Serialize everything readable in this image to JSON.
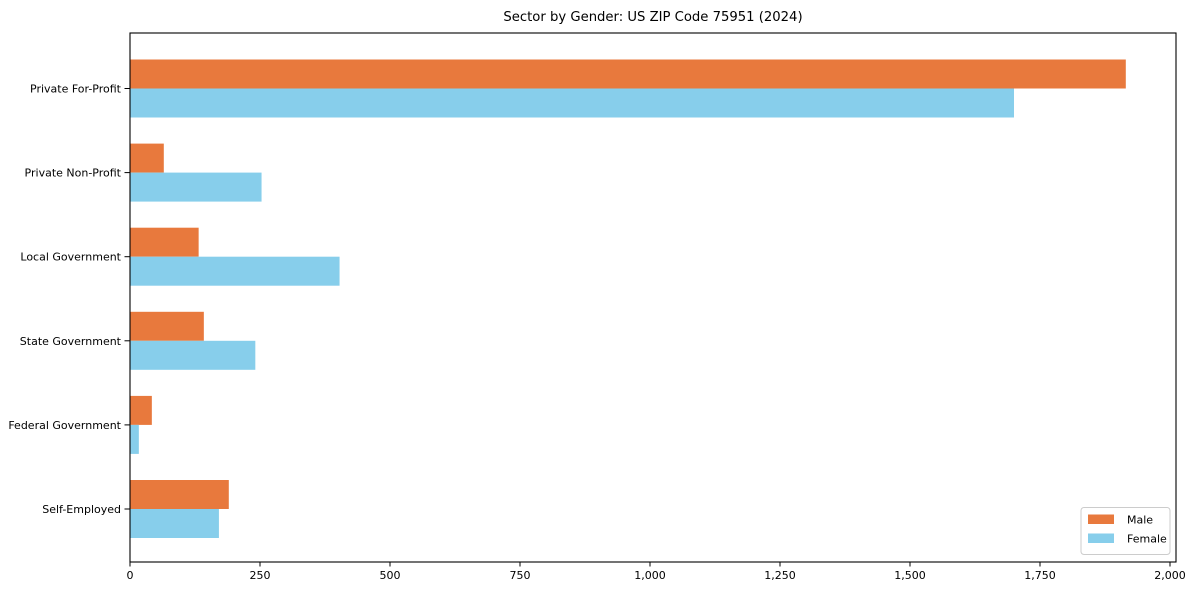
{
  "title": "Sector by Gender: US ZIP Code 75951 (2024)",
  "chart_data": {
    "type": "bar",
    "orientation": "horizontal",
    "title": "Sector by Gender: US ZIP Code 75951 (2024)",
    "xlabel": "",
    "ylabel": "",
    "categories": [
      "Private For-Profit",
      "Private Non-Profit",
      "Local Government",
      "State Government",
      "Federal Government",
      "Self-Employed"
    ],
    "series": [
      {
        "name": "Male",
        "color": "#E8793D",
        "values": [
          1915,
          65,
          132,
          142,
          42,
          190
        ]
      },
      {
        "name": "Female",
        "color": "#87CEEB",
        "values": [
          1700,
          253,
          403,
          241,
          17,
          171
        ]
      }
    ],
    "xlim": [
      0,
      2010
    ],
    "xticks": [
      0,
      250,
      500,
      750,
      1000,
      1250,
      1500,
      1750,
      2000
    ],
    "xtick_labels": [
      "0",
      "250",
      "500",
      "750",
      "1,000",
      "1,250",
      "1,500",
      "1,750",
      "2,000"
    ],
    "grid": false,
    "legend_position": "lower right"
  },
  "legend": {
    "male_label": "Male",
    "female_label": "Female"
  },
  "colors": {
    "male": "#E8793D",
    "female": "#87CEEB",
    "axis": "#000000",
    "legend_border": "#cccccc",
    "background": "#ffffff"
  }
}
